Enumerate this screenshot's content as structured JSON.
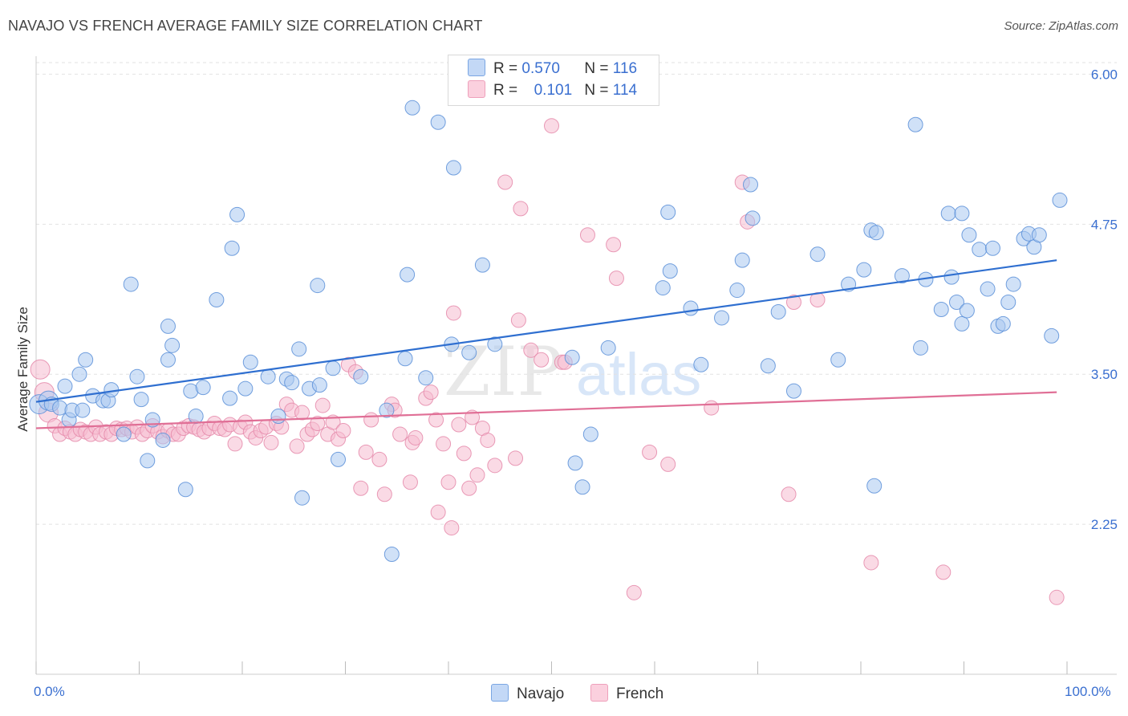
{
  "header": {
    "title": "NAVAJO VS FRENCH AVERAGE FAMILY SIZE CORRELATION CHART",
    "source": "Source: ZipAtlas.com"
  },
  "watermark": {
    "zip": "ZIP",
    "atlas": "atlas"
  },
  "colors": {
    "navajo_fill": "#a9c8f0",
    "navajo_stroke": "#5b8fd8",
    "navajo_line": "#2f6fd0",
    "french_fill": "#f6bcd0",
    "french_stroke": "#e58aaa",
    "french_line": "#e06f96",
    "axis_label": "#3a6fd0",
    "grid": "#e2e2e2"
  },
  "legend": {
    "navajo": {
      "r_label": "R =",
      "r_value": "0.570",
      "n_label": "N =",
      "n_value": "116"
    },
    "french": {
      "r_label": "R =",
      "r_value": "0.101",
      "n_label": "N =",
      "n_value": "114"
    }
  },
  "chart_data": {
    "type": "scatter",
    "title": "NAVAJO VS FRENCH AVERAGE FAMILY SIZE CORRELATION CHART",
    "xlabel": "",
    "ylabel": "Average Family Size",
    "xlim": [
      0,
      100
    ],
    "ylim": [
      1.0,
      6.15
    ],
    "x_tick_labels": [
      "0.0%",
      "100.0%"
    ],
    "y_ticks": [
      2.25,
      3.5,
      4.75,
      6.0
    ],
    "y_tick_labels": [
      "2.25",
      "3.50",
      "4.75",
      "6.00"
    ],
    "grid": true,
    "legend_position": "top-center and bottom",
    "series": [
      {
        "name": "Navajo",
        "trend": {
          "x": [
            0,
            99
          ],
          "y": [
            3.27,
            4.45
          ]
        },
        "points": [
          [
            0.3,
            3.25
          ],
          [
            1.2,
            3.28
          ],
          [
            1.5,
            3.25
          ],
          [
            2.3,
            3.22
          ],
          [
            2.8,
            3.4
          ],
          [
            3.2,
            3.12
          ],
          [
            3.5,
            3.2
          ],
          [
            4.2,
            3.5
          ],
          [
            4.5,
            3.2
          ],
          [
            4.8,
            3.62
          ],
          [
            5.5,
            3.32
          ],
          [
            6.5,
            3.28
          ],
          [
            7.0,
            3.28
          ],
          [
            7.3,
            3.37
          ],
          [
            8.5,
            3.0
          ],
          [
            9.2,
            4.25
          ],
          [
            9.8,
            3.48
          ],
          [
            10.2,
            3.29
          ],
          [
            10.8,
            2.78
          ],
          [
            11.3,
            3.12
          ],
          [
            12.3,
            2.95
          ],
          [
            12.8,
            3.62
          ],
          [
            12.8,
            3.9
          ],
          [
            13.2,
            3.74
          ],
          [
            14.5,
            2.54
          ],
          [
            15.0,
            3.36
          ],
          [
            15.5,
            3.15
          ],
          [
            16.2,
            3.39
          ],
          [
            17.5,
            4.12
          ],
          [
            18.8,
            3.3
          ],
          [
            19.0,
            4.55
          ],
          [
            19.5,
            4.83
          ],
          [
            20.3,
            3.38
          ],
          [
            20.8,
            3.6
          ],
          [
            22.5,
            3.48
          ],
          [
            23.5,
            3.15
          ],
          [
            24.3,
            3.46
          ],
          [
            24.8,
            3.43
          ],
          [
            25.5,
            3.71
          ],
          [
            25.8,
            2.47
          ],
          [
            26.5,
            3.38
          ],
          [
            27.3,
            4.24
          ],
          [
            27.5,
            3.41
          ],
          [
            28.8,
            3.55
          ],
          [
            29.3,
            2.79
          ],
          [
            31.5,
            3.48
          ],
          [
            34.0,
            3.2
          ],
          [
            34.5,
            2.0
          ],
          [
            35.8,
            3.63
          ],
          [
            36.0,
            4.33
          ],
          [
            36.5,
            5.72
          ],
          [
            37.8,
            3.47
          ],
          [
            39.0,
            5.6
          ],
          [
            40.3,
            3.75
          ],
          [
            40.5,
            5.22
          ],
          [
            42.0,
            3.68
          ],
          [
            43.3,
            4.41
          ],
          [
            44.5,
            3.75
          ],
          [
            52.0,
            3.64
          ],
          [
            52.3,
            2.76
          ],
          [
            53.0,
            2.56
          ],
          [
            53.8,
            3.0
          ],
          [
            55.5,
            3.72
          ],
          [
            60.8,
            4.22
          ],
          [
            61.3,
            4.85
          ],
          [
            61.5,
            4.36
          ],
          [
            63.5,
            4.05
          ],
          [
            64.5,
            3.58
          ],
          [
            66.5,
            3.97
          ],
          [
            68.0,
            4.2
          ],
          [
            68.5,
            4.45
          ],
          [
            69.3,
            5.08
          ],
          [
            69.5,
            4.8
          ],
          [
            71.0,
            3.57
          ],
          [
            72.0,
            4.02
          ],
          [
            73.5,
            3.36
          ],
          [
            75.8,
            4.5
          ],
          [
            77.8,
            3.62
          ],
          [
            78.8,
            4.25
          ],
          [
            80.3,
            4.37
          ],
          [
            81.0,
            4.7
          ],
          [
            81.3,
            2.57
          ],
          [
            81.5,
            4.68
          ],
          [
            84.0,
            4.32
          ],
          [
            85.3,
            5.58
          ],
          [
            85.8,
            3.72
          ],
          [
            86.3,
            4.29
          ],
          [
            87.8,
            4.04
          ],
          [
            88.5,
            4.84
          ],
          [
            88.8,
            4.31
          ],
          [
            89.3,
            4.1
          ],
          [
            89.8,
            3.92
          ],
          [
            89.8,
            4.84
          ],
          [
            90.3,
            4.03
          ],
          [
            90.5,
            4.66
          ],
          [
            91.5,
            4.54
          ],
          [
            92.3,
            4.21
          ],
          [
            92.8,
            4.55
          ],
          [
            93.3,
            3.9
          ],
          [
            93.8,
            3.92
          ],
          [
            94.3,
            4.1
          ],
          [
            94.8,
            4.25
          ],
          [
            95.8,
            4.63
          ],
          [
            96.3,
            4.67
          ],
          [
            96.8,
            4.56
          ],
          [
            97.3,
            4.66
          ],
          [
            98.5,
            3.82
          ],
          [
            99.3,
            4.95
          ]
        ]
      },
      {
        "name": "French",
        "trend": {
          "x": [
            0,
            99
          ],
          "y": [
            3.05,
            3.35
          ]
        },
        "points": [
          [
            0.4,
            3.54
          ],
          [
            0.8,
            3.35
          ],
          [
            1.2,
            3.18
          ],
          [
            1.8,
            3.07
          ],
          [
            2.3,
            3.0
          ],
          [
            2.8,
            3.05
          ],
          [
            3.3,
            3.02
          ],
          [
            3.8,
            3.0
          ],
          [
            4.3,
            3.04
          ],
          [
            4.8,
            3.02
          ],
          [
            5.3,
            3.0
          ],
          [
            5.8,
            3.06
          ],
          [
            6.2,
            3.0
          ],
          [
            6.8,
            3.02
          ],
          [
            7.3,
            3.0
          ],
          [
            7.8,
            3.05
          ],
          [
            8.3,
            3.04
          ],
          [
            8.8,
            3.05
          ],
          [
            9.3,
            3.02
          ],
          [
            9.8,
            3.06
          ],
          [
            10.3,
            3.0
          ],
          [
            10.8,
            3.03
          ],
          [
            11.3,
            3.07
          ],
          [
            11.8,
            3.02
          ],
          [
            12.3,
            2.98
          ],
          [
            12.8,
            3.03
          ],
          [
            13.3,
            3.0
          ],
          [
            13.8,
            3.0
          ],
          [
            14.3,
            3.05
          ],
          [
            14.8,
            3.07
          ],
          [
            15.3,
            3.06
          ],
          [
            15.8,
            3.04
          ],
          [
            16.3,
            3.02
          ],
          [
            16.8,
            3.05
          ],
          [
            17.3,
            3.09
          ],
          [
            17.8,
            3.05
          ],
          [
            18.3,
            3.04
          ],
          [
            18.8,
            3.08
          ],
          [
            19.3,
            2.92
          ],
          [
            19.8,
            3.06
          ],
          [
            20.3,
            3.1
          ],
          [
            20.8,
            3.02
          ],
          [
            21.3,
            2.97
          ],
          [
            21.8,
            3.03
          ],
          [
            22.3,
            3.06
          ],
          [
            22.8,
            2.93
          ],
          [
            23.3,
            3.09
          ],
          [
            23.8,
            3.06
          ],
          [
            24.3,
            3.25
          ],
          [
            24.8,
            3.2
          ],
          [
            25.3,
            2.9
          ],
          [
            25.8,
            3.18
          ],
          [
            26.3,
            3.0
          ],
          [
            26.8,
            3.04
          ],
          [
            27.3,
            3.09
          ],
          [
            27.8,
            3.24
          ],
          [
            28.3,
            3.0
          ],
          [
            28.8,
            3.1
          ],
          [
            29.3,
            2.96
          ],
          [
            29.8,
            3.03
          ],
          [
            30.3,
            3.58
          ],
          [
            31.0,
            3.52
          ],
          [
            31.5,
            2.55
          ],
          [
            32.0,
            2.85
          ],
          [
            32.5,
            3.12
          ],
          [
            33.3,
            2.79
          ],
          [
            33.8,
            2.5
          ],
          [
            34.5,
            3.25
          ],
          [
            34.8,
            3.2
          ],
          [
            35.3,
            3.0
          ],
          [
            36.3,
            2.6
          ],
          [
            36.5,
            2.93
          ],
          [
            36.8,
            2.97
          ],
          [
            37.8,
            3.3
          ],
          [
            38.3,
            3.35
          ],
          [
            38.8,
            3.12
          ],
          [
            39.0,
            2.35
          ],
          [
            39.5,
            2.92
          ],
          [
            40.0,
            2.6
          ],
          [
            40.3,
            2.22
          ],
          [
            40.5,
            4.01
          ],
          [
            41.0,
            3.08
          ],
          [
            41.5,
            2.84
          ],
          [
            42.0,
            2.55
          ],
          [
            42.3,
            3.14
          ],
          [
            42.8,
            2.66
          ],
          [
            43.3,
            3.05
          ],
          [
            43.8,
            2.95
          ],
          [
            45.5,
            5.1
          ],
          [
            44.5,
            2.74
          ],
          [
            46.5,
            2.8
          ],
          [
            46.8,
            3.95
          ],
          [
            47.0,
            4.88
          ],
          [
            48.0,
            3.7
          ],
          [
            49.0,
            3.62
          ],
          [
            50.0,
            5.57
          ],
          [
            51.0,
            3.6
          ],
          [
            51.3,
            3.6
          ],
          [
            53.5,
            4.66
          ],
          [
            56.0,
            4.58
          ],
          [
            56.3,
            4.3
          ],
          [
            58.0,
            1.68
          ],
          [
            59.5,
            2.85
          ],
          [
            61.3,
            2.75
          ],
          [
            65.5,
            3.22
          ],
          [
            68.5,
            5.1
          ],
          [
            69.0,
            4.77
          ],
          [
            73.0,
            2.5
          ],
          [
            73.5,
            4.1
          ],
          [
            75.8,
            4.12
          ],
          [
            81.0,
            1.93
          ],
          [
            88.0,
            1.85
          ],
          [
            99.0,
            1.64
          ]
        ]
      }
    ]
  },
  "bottom_legend": {
    "navajo": "Navajo",
    "french": "French"
  }
}
